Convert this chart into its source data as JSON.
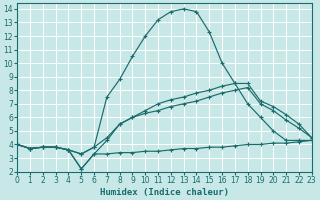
{
  "xlabel": "Humidex (Indice chaleur)",
  "bg_color": "#c8e8e8",
  "grid_color": "#b0d8d8",
  "line_color": "#1a6b6b",
  "xlim": [
    0,
    23
  ],
  "ylim": [
    2,
    14.4
  ],
  "xticks": [
    0,
    1,
    2,
    3,
    4,
    5,
    6,
    7,
    8,
    9,
    10,
    11,
    12,
    13,
    14,
    15,
    16,
    17,
    18,
    19,
    20,
    21,
    22,
    23
  ],
  "yticks": [
    2,
    3,
    4,
    5,
    6,
    7,
    8,
    9,
    10,
    11,
    12,
    13,
    14
  ],
  "curves": [
    {
      "x": [
        0,
        1,
        2,
        3,
        4,
        5,
        6,
        7,
        8,
        9,
        10,
        11,
        12,
        13,
        14,
        15,
        16,
        17,
        18,
        19,
        20,
        21,
        22,
        23
      ],
      "y": [
        4.0,
        3.7,
        3.8,
        3.8,
        3.6,
        3.3,
        3.8,
        7.5,
        8.8,
        10.5,
        12.0,
        13.2,
        13.8,
        14.0,
        13.8,
        12.3,
        10.0,
        8.5,
        7.0,
        6.0,
        5.0,
        4.3,
        4.3,
        4.3
      ]
    },
    {
      "x": [
        0,
        1,
        2,
        3,
        4,
        5,
        6,
        7,
        8,
        9,
        10,
        11,
        12,
        13,
        14,
        15,
        16,
        17,
        18,
        19,
        20,
        21,
        22,
        23
      ],
      "y": [
        4.0,
        3.7,
        3.8,
        3.8,
        3.6,
        3.3,
        3.8,
        4.5,
        5.5,
        6.0,
        6.5,
        7.0,
        7.3,
        7.5,
        7.8,
        8.0,
        8.3,
        8.5,
        8.5,
        7.2,
        6.8,
        6.2,
        5.5,
        4.5
      ]
    },
    {
      "x": [
        0,
        1,
        2,
        3,
        4,
        5,
        6,
        7,
        8,
        9,
        10,
        11,
        12,
        13,
        14,
        15,
        16,
        17,
        18,
        19,
        20,
        21,
        22,
        23
      ],
      "y": [
        4.0,
        3.7,
        3.8,
        3.8,
        3.6,
        2.2,
        3.3,
        4.3,
        5.5,
        6.0,
        6.3,
        6.5,
        6.8,
        7.0,
        7.2,
        7.5,
        7.8,
        8.0,
        8.2,
        7.0,
        6.5,
        5.8,
        5.2,
        4.5
      ]
    },
    {
      "x": [
        0,
        1,
        2,
        3,
        4,
        5,
        6,
        7,
        8,
        9,
        10,
        11,
        12,
        13,
        14,
        15,
        16,
        17,
        18,
        19,
        20,
        21,
        22,
        23
      ],
      "y": [
        4.0,
        3.7,
        3.8,
        3.8,
        3.6,
        2.2,
        3.3,
        3.3,
        3.4,
        3.4,
        3.5,
        3.5,
        3.6,
        3.7,
        3.7,
        3.8,
        3.8,
        3.9,
        4.0,
        4.0,
        4.1,
        4.1,
        4.2,
        4.3
      ]
    }
  ]
}
